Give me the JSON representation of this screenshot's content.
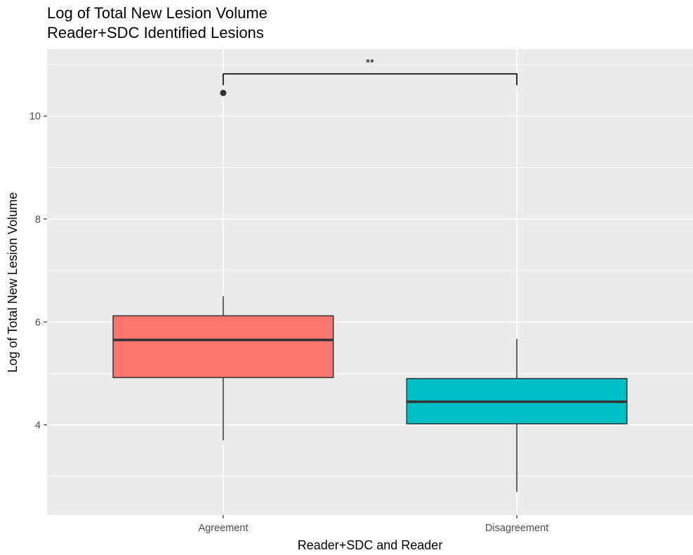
{
  "chart_data": {
    "type": "box",
    "title": "Log of Total New Lesion Volume",
    "subtitle": "Reader+SDC Identified Lesions",
    "xlabel": "Reader+SDC and Reader",
    "ylabel": "Log of Total New Lesion Volume",
    "ylim": [
      2.25,
      11.3
    ],
    "y_ticks": [
      4,
      6,
      8,
      10
    ],
    "grid": true,
    "legend": "none",
    "categories": [
      "Agreement",
      "Disagreement"
    ],
    "boxes": [
      {
        "category": "Agreement",
        "fill": "#F8766D",
        "whisker_low": 3.7,
        "q1": 4.92,
        "median": 5.65,
        "q3": 6.12,
        "whisker_high": 6.5,
        "outliers": [
          10.45
        ]
      },
      {
        "category": "Disagreement",
        "fill": "#00BFC4",
        "whisker_low": 2.7,
        "q1": 4.02,
        "median": 4.45,
        "q3": 4.9,
        "whisker_high": 5.67,
        "outliers": []
      }
    ],
    "significance": {
      "from": "Agreement",
      "to": "Disagreement",
      "label": "**",
      "y": 10.82,
      "tip_y": 10.6
    }
  }
}
